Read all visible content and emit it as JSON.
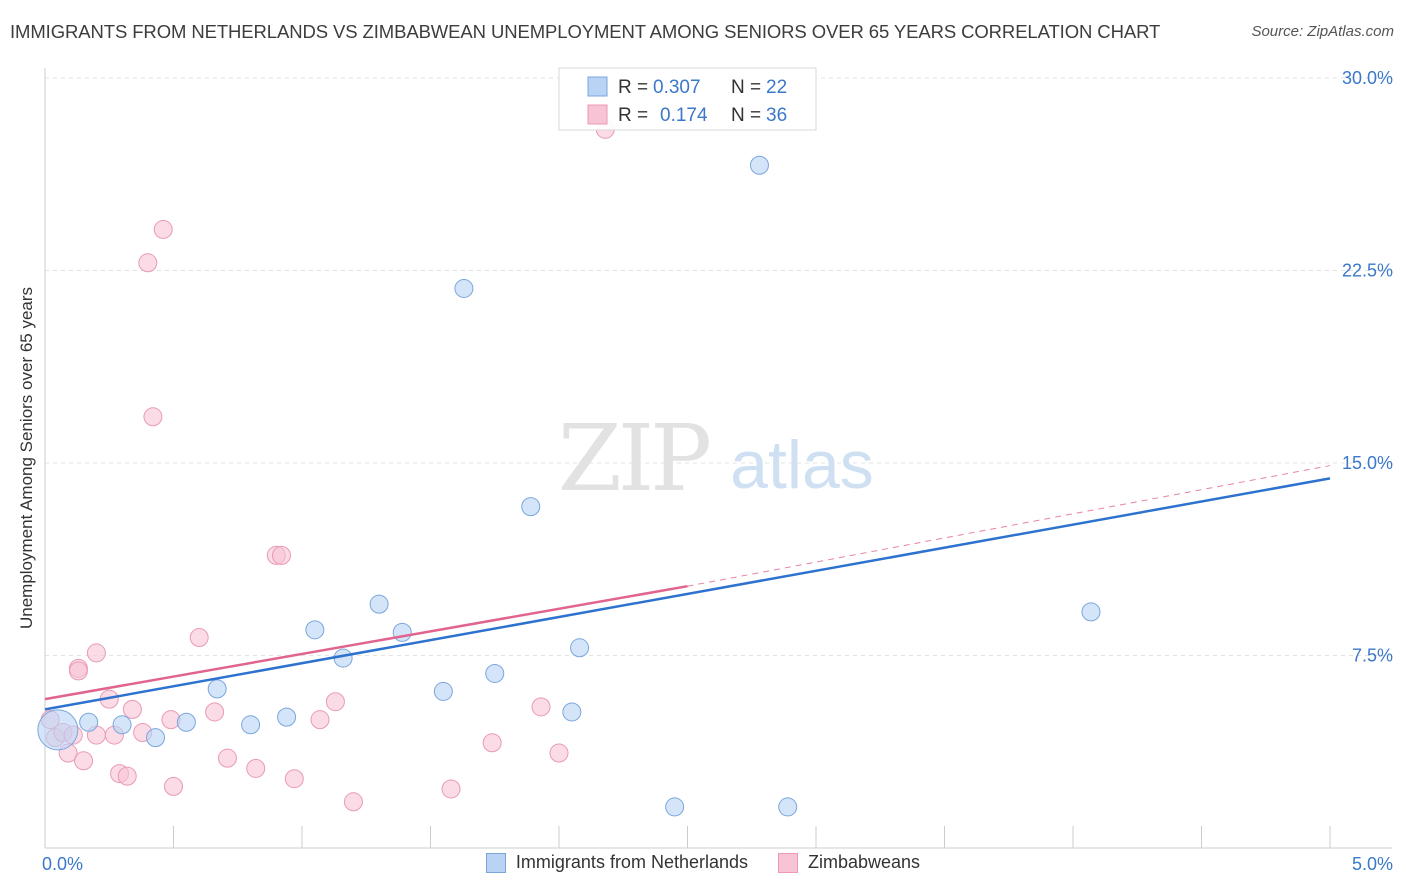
{
  "title": "IMMIGRANTS FROM NETHERLANDS VS ZIMBABWEAN UNEMPLOYMENT AMONG SENIORS OVER 65 YEARS CORRELATION CHART",
  "source": "Source: ZipAtlas.com",
  "watermark": {
    "zip": "ZIP",
    "atlas": "atlas"
  },
  "colors": {
    "blue_fill": "#b9d3f5",
    "blue_stroke": "#7aa6dc",
    "blue_line": "#2e72cf",
    "pink_fill": "#f8c3d4",
    "pink_stroke": "#e99ab5",
    "pink_line": "#e0648f",
    "axis_text": "#3b78c9"
  },
  "legend_top": [
    {
      "r_label": "R = ",
      "r_value": "0.307",
      "n_label": "N = ",
      "n_value": "22"
    },
    {
      "r_label": "R = ",
      "r_value": "0.174",
      "n_label": "N = ",
      "n_value": "36"
    }
  ],
  "legend_bottom": [
    "Immigrants from Netherlands",
    "Zimbabweans"
  ],
  "chart_data": {
    "type": "scatter",
    "title": "IMMIGRANTS FROM NETHERLANDS VS ZIMBABWEAN UNEMPLOYMENT AMONG SENIORS OVER 65 YEARS CORRELATION CHART",
    "xlabel": "",
    "ylabel": "Unemployment Among Seniors over 65 years",
    "xlim": [
      0,
      5
    ],
    "ylim": [
      0,
      30
    ],
    "x_tick_labels": [
      "0.0%",
      "5.0%"
    ],
    "y_ticks": [
      7.5,
      15,
      22.5,
      30
    ],
    "y_tick_labels": [
      "7.5%",
      "15.0%",
      "22.5%",
      "30.0%"
    ],
    "grid": true,
    "series": [
      {
        "name": "Immigrants from Netherlands",
        "color": "blue",
        "points": [
          [
            0.05,
            4.6
          ],
          [
            0.17,
            4.9
          ],
          [
            0.3,
            4.8
          ],
          [
            0.43,
            4.3
          ],
          [
            0.55,
            4.9
          ],
          [
            0.67,
            6.2
          ],
          [
            0.8,
            4.8
          ],
          [
            0.94,
            5.1
          ],
          [
            1.05,
            8.5
          ],
          [
            1.16,
            7.4
          ],
          [
            1.3,
            9.5
          ],
          [
            1.39,
            8.4
          ],
          [
            1.55,
            6.1
          ],
          [
            1.63,
            21.8
          ],
          [
            1.75,
            6.8
          ],
          [
            1.89,
            13.3
          ],
          [
            2.05,
            5.3
          ],
          [
            2.08,
            7.8
          ],
          [
            2.45,
            1.6
          ],
          [
            2.78,
            26.6
          ],
          [
            2.89,
            1.6
          ],
          [
            4.07,
            9.2
          ]
        ],
        "sizes": [
          20,
          9,
          9,
          9,
          9,
          9,
          9,
          9,
          9,
          9,
          9,
          9,
          9,
          9,
          9,
          9,
          9,
          9,
          9,
          9,
          9,
          9
        ],
        "trend": {
          "x": [
            0,
            5
          ],
          "y": [
            5.4,
            14.4
          ],
          "style": "solid"
        }
      },
      {
        "name": "Zimbabweans",
        "color": "pink",
        "points": [
          [
            0.02,
            5.0
          ],
          [
            0.04,
            4.3
          ],
          [
            0.07,
            4.5
          ],
          [
            0.09,
            3.7
          ],
          [
            0.11,
            4.4
          ],
          [
            0.13,
            7.0
          ],
          [
            0.15,
            3.4
          ],
          [
            0.2,
            4.4
          ],
          [
            0.2,
            7.6
          ],
          [
            0.25,
            5.8
          ],
          [
            0.27,
            4.4
          ],
          [
            0.29,
            2.9
          ],
          [
            0.32,
            2.8
          ],
          [
            0.34,
            5.4
          ],
          [
            0.38,
            4.5
          ],
          [
            0.4,
            22.8
          ],
          [
            0.42,
            16.8
          ],
          [
            0.46,
            24.1
          ],
          [
            0.49,
            5.0
          ],
          [
            0.5,
            2.4
          ],
          [
            0.6,
            8.2
          ],
          [
            0.66,
            5.3
          ],
          [
            0.71,
            3.5
          ],
          [
            0.82,
            3.1
          ],
          [
            0.9,
            11.4
          ],
          [
            0.92,
            11.4
          ],
          [
            0.97,
            2.7
          ],
          [
            1.07,
            5.0
          ],
          [
            1.13,
            5.7
          ],
          [
            1.2,
            1.8
          ],
          [
            1.58,
            2.3
          ],
          [
            1.74,
            4.1
          ],
          [
            1.93,
            5.5
          ],
          [
            2.0,
            3.7
          ],
          [
            2.18,
            28.0
          ],
          [
            0.13,
            6.9
          ]
        ],
        "sizes": [
          9,
          9,
          9,
          9,
          9,
          9,
          9,
          9,
          9,
          9,
          9,
          9,
          9,
          9,
          9,
          9,
          9,
          9,
          9,
          9,
          9,
          9,
          9,
          9,
          9,
          9,
          9,
          9,
          9,
          9,
          9,
          9,
          9,
          9,
          9,
          9
        ],
        "trend": {
          "x": [
            0,
            2.5
          ],
          "y": [
            5.8,
            10.2
          ],
          "style": "solid"
        },
        "trend_extension": {
          "x": [
            2.5,
            5
          ],
          "y": [
            10.2,
            14.9
          ],
          "style": "dashed"
        }
      }
    ]
  }
}
